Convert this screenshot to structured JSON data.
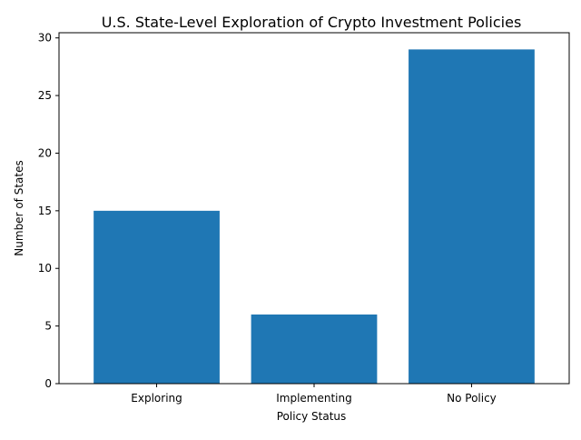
{
  "chart_data": {
    "type": "bar",
    "title": "U.S. State-Level Exploration of Crypto Investment Policies",
    "xlabel": "Policy Status",
    "ylabel": "Number of States",
    "categories": [
      "Exploring",
      "Implementing",
      "No Policy"
    ],
    "values": [
      15,
      6,
      29
    ],
    "ylim": [
      0,
      30.45
    ],
    "yticks": [
      0,
      5,
      10,
      15,
      20,
      25,
      30
    ],
    "grid": false,
    "legend": "none",
    "bar_color": "#1f77b4"
  }
}
